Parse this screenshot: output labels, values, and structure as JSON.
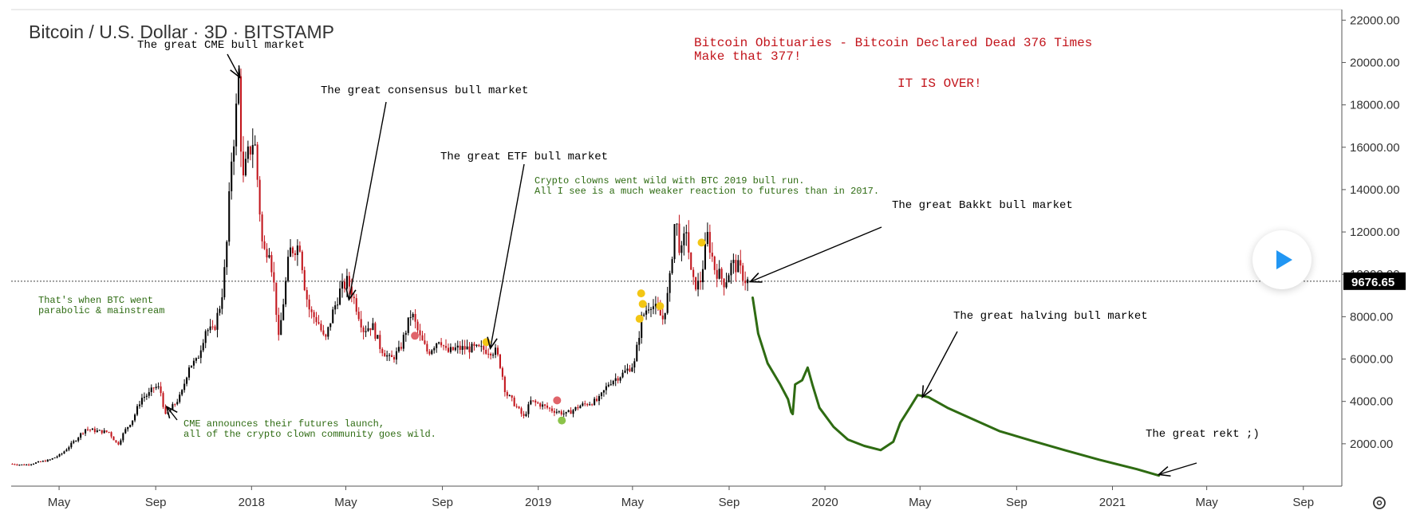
{
  "header": {
    "title": "Bitcoin / U.S. Dollar · 3D · BITSTAMP"
  },
  "colors": {
    "up": "#000000",
    "down": "#c2151c",
    "projection": "#2e6b12",
    "annotation_red": "#c2151c",
    "annotation_green": "#2e6b12",
    "annotation_black": "#000000",
    "price_tag_bg": "#000000",
    "marker_yellow": "#f3c614",
    "marker_red": "#e0646a",
    "marker_green": "#8bc34a"
  },
  "controls": {
    "play_icon": "play-icon",
    "settings_icon": "gear-icon"
  },
  "chart_data": {
    "type": "line",
    "title": "Bitcoin / U.S. Dollar · 3D · BITSTAMP",
    "xlabel": "",
    "ylabel": "",
    "x_range": [
      "2017-03-01",
      "2021-10-20"
    ],
    "ylim": [
      0,
      22500
    ],
    "grid": false,
    "y_ticks": [
      "22000.00",
      "20000.00",
      "18000.00",
      "16000.00",
      "14000.00",
      "12000.00",
      "10000.00",
      "8000.00",
      "6000.00",
      "4000.00",
      "2000.00"
    ],
    "y_tick_values": [
      22000,
      20000,
      18000,
      16000,
      14000,
      12000,
      10000,
      8000,
      6000,
      4000,
      2000
    ],
    "x_ticks": [
      {
        "label": "May",
        "date": "2017-05-01"
      },
      {
        "label": "Sep",
        "date": "2017-09-01"
      },
      {
        "label": "2018",
        "date": "2018-01-01"
      },
      {
        "label": "May",
        "date": "2018-05-01"
      },
      {
        "label": "Sep",
        "date": "2018-09-01"
      },
      {
        "label": "2019",
        "date": "2019-01-01"
      },
      {
        "label": "May",
        "date": "2019-05-01"
      },
      {
        "label": "Sep",
        "date": "2019-09-01"
      },
      {
        "label": "2020",
        "date": "2020-01-01"
      },
      {
        "label": "May",
        "date": "2020-05-01"
      },
      {
        "label": "Sep",
        "date": "2020-09-01"
      },
      {
        "label": "2021",
        "date": "2021-01-01"
      },
      {
        "label": "May",
        "date": "2021-05-01"
      },
      {
        "label": "Sep",
        "date": "2021-09-01"
      }
    ],
    "last_price": {
      "label": "9676.65",
      "value": 9676.65
    },
    "series": [
      {
        "kind": "price",
        "points": [
          [
            "2017-03-01",
            1050
          ],
          [
            "2017-03-20",
            1000
          ],
          [
            "2017-04-05",
            1120
          ],
          [
            "2017-04-20",
            1230
          ],
          [
            "2017-05-05",
            1500
          ],
          [
            "2017-05-20",
            2050
          ],
          [
            "2017-06-05",
            2700
          ],
          [
            "2017-06-20",
            2600
          ],
          [
            "2017-07-05",
            2550
          ],
          [
            "2017-07-16",
            1950
          ],
          [
            "2017-07-25",
            2600
          ],
          [
            "2017-08-05",
            3200
          ],
          [
            "2017-08-15",
            4150
          ],
          [
            "2017-08-25",
            4350
          ],
          [
            "2017-09-01",
            4700
          ],
          [
            "2017-09-08",
            4600
          ],
          [
            "2017-09-15",
            3300
          ],
          [
            "2017-09-25",
            3800
          ],
          [
            "2017-10-05",
            4300
          ],
          [
            "2017-10-15",
            5700
          ],
          [
            "2017-10-25",
            5900
          ],
          [
            "2017-11-05",
            7400
          ],
          [
            "2017-11-15",
            7300
          ],
          [
            "2017-11-25",
            8800
          ],
          [
            "2017-12-01",
            10800
          ],
          [
            "2017-12-08",
            15500
          ],
          [
            "2017-12-12",
            16800
          ],
          [
            "2017-12-17",
            19200
          ],
          [
            "2017-12-22",
            14200
          ],
          [
            "2017-12-28",
            15500
          ],
          [
            "2018-01-06",
            16500
          ],
          [
            "2018-01-12",
            13500
          ],
          [
            "2018-01-17",
            11000
          ],
          [
            "2018-01-25",
            11300
          ],
          [
            "2018-02-01",
            9200
          ],
          [
            "2018-02-06",
            6900
          ],
          [
            "2018-02-12",
            8700
          ],
          [
            "2018-02-20",
            11100
          ],
          [
            "2018-03-05",
            11400
          ],
          [
            "2018-03-12",
            9200
          ],
          [
            "2018-03-18",
            8200
          ],
          [
            "2018-03-28",
            7800
          ],
          [
            "2018-04-06",
            6800
          ],
          [
            "2018-04-15",
            8100
          ],
          [
            "2018-04-25",
            9200
          ],
          [
            "2018-05-05",
            9700
          ],
          [
            "2018-05-15",
            8600
          ],
          [
            "2018-05-25",
            7400
          ],
          [
            "2018-06-05",
            7600
          ],
          [
            "2018-06-15",
            6600
          ],
          [
            "2018-06-28",
            5950
          ],
          [
            "2018-07-10",
            6400
          ],
          [
            "2018-07-25",
            8200
          ],
          [
            "2018-08-05",
            7000
          ],
          [
            "2018-08-15",
            6300
          ],
          [
            "2018-08-30",
            7000
          ],
          [
            "2018-09-08",
            6300
          ],
          [
            "2018-09-20",
            6500
          ],
          [
            "2018-10-10",
            6500
          ],
          [
            "2018-10-25",
            6450
          ],
          [
            "2018-11-10",
            6350
          ],
          [
            "2018-11-16",
            5600
          ],
          [
            "2018-11-22",
            4400
          ],
          [
            "2018-12-01",
            4000
          ],
          [
            "2018-12-15",
            3250
          ],
          [
            "2018-12-24",
            4000
          ],
          [
            "2019-01-05",
            3850
          ],
          [
            "2019-01-20",
            3600
          ],
          [
            "2019-02-07",
            3400
          ],
          [
            "2019-02-25",
            3800
          ],
          [
            "2019-03-20",
            4050
          ],
          [
            "2019-04-03",
            4900
          ],
          [
            "2019-04-20",
            5300
          ],
          [
            "2019-05-05",
            5800
          ],
          [
            "2019-05-14",
            7900
          ],
          [
            "2019-05-25",
            8700
          ],
          [
            "2019-06-10",
            7900
          ],
          [
            "2019-06-18",
            9300
          ],
          [
            "2019-06-26",
            12800
          ],
          [
            "2019-07-03",
            10800
          ],
          [
            "2019-07-10",
            12200
          ],
          [
            "2019-07-17",
            9600
          ],
          [
            "2019-07-27",
            9500
          ],
          [
            "2019-08-06",
            11800
          ],
          [
            "2019-08-15",
            10300
          ],
          [
            "2019-08-28",
            9600
          ],
          [
            "2019-09-06",
            10500
          ],
          [
            "2019-09-15",
            10300
          ],
          [
            "2019-09-24",
            9676.65
          ]
        ]
      },
      {
        "kind": "projection",
        "points": [
          [
            "2019-10-01",
            8900
          ],
          [
            "2019-10-08",
            7200
          ],
          [
            "2019-10-20",
            5800
          ],
          [
            "2019-11-05",
            4800
          ],
          [
            "2019-11-15",
            4100
          ],
          [
            "2019-11-19",
            3500
          ],
          [
            "2019-11-21",
            3400
          ],
          [
            "2019-11-24",
            4800
          ],
          [
            "2019-12-03",
            5000
          ],
          [
            "2019-12-10",
            5600
          ],
          [
            "2019-12-16",
            4800
          ],
          [
            "2019-12-25",
            3700
          ],
          [
            "2020-01-12",
            2800
          ],
          [
            "2020-01-30",
            2200
          ],
          [
            "2020-02-20",
            1900
          ],
          [
            "2020-03-12",
            1700
          ],
          [
            "2020-03-28",
            2100
          ],
          [
            "2020-04-06",
            3000
          ],
          [
            "2020-04-18",
            3700
          ],
          [
            "2020-04-28",
            4300
          ],
          [
            "2020-05-12",
            4200
          ],
          [
            "2020-06-05",
            3700
          ],
          [
            "2020-07-05",
            3200
          ],
          [
            "2020-08-10",
            2600
          ],
          [
            "2020-09-20",
            2150
          ],
          [
            "2020-11-01",
            1700
          ],
          [
            "2020-12-15",
            1250
          ],
          [
            "2021-02-01",
            800
          ],
          [
            "2021-03-01",
            500
          ]
        ]
      }
    ],
    "markers": [
      {
        "date": "2018-07-28",
        "value": 7100,
        "color": "red"
      },
      {
        "date": "2018-10-27",
        "value": 6800,
        "color": "yellow"
      },
      {
        "date": "2019-01-25",
        "value": 4050,
        "color": "red"
      },
      {
        "date": "2019-01-31",
        "value": 3100,
        "color": "green"
      },
      {
        "date": "2019-05-10",
        "value": 7900,
        "color": "yellow"
      },
      {
        "date": "2019-05-12",
        "value": 9100,
        "color": "yellow"
      },
      {
        "date": "2019-05-14",
        "value": 8600,
        "color": "yellow"
      },
      {
        "date": "2019-06-05",
        "value": 8500,
        "color": "yellow"
      },
      {
        "date": "2019-07-28",
        "value": 11500,
        "color": "yellow"
      }
    ],
    "annotations": [
      {
        "id": "cme-bull",
        "text": [
          "The great CME bull market"
        ],
        "color": "black",
        "tip": [
          "2017-12-17",
          19300
        ]
      },
      {
        "id": "consensus-bull",
        "text": [
          "The great consensus bull market"
        ],
        "color": "black",
        "tip": [
          "2018-05-05",
          8800
        ]
      },
      {
        "id": "etf-bull",
        "text": [
          "The great ETF bull market"
        ],
        "color": "black",
        "tip": [
          "2018-11-01",
          6500
        ]
      },
      {
        "id": "bakkt-bull",
        "text": [
          "The great Bakkt bull market"
        ],
        "color": "black",
        "tip": [
          "2019-09-28",
          9650
        ]
      },
      {
        "id": "halving-bull",
        "text": [
          "The great halving bull market"
        ],
        "color": "black",
        "tip": [
          "2020-05-04",
          4200
        ]
      },
      {
        "id": "rekt",
        "text": [
          "The great rekt ;)"
        ],
        "color": "black",
        "tip": [
          "2021-03-01",
          550
        ]
      },
      {
        "id": "obituaries",
        "text": [
          "Bitcoin Obituaries - Bitcoin Declared Dead 376 Times",
          "Make that 377!"
        ],
        "color": "red"
      },
      {
        "id": "over",
        "text": [
          "IT IS OVER!"
        ],
        "color": "red"
      },
      {
        "id": "crypto-clowns",
        "text": [
          "Crypto clowns went wild with BTC 2019 bull run.",
          "All I see is a much weaker reaction to futures than in 2017."
        ],
        "color": "green"
      },
      {
        "id": "parabolic",
        "text": [
          "That's when BTC went",
          "parabolic & mainstream"
        ],
        "color": "green"
      },
      {
        "id": "cme-launch",
        "text": [
          "CME announces their futures launch,",
          "all of the crypto clown community goes wild."
        ],
        "color": "green",
        "tip": [
          "2017-09-15",
          3750
        ]
      }
    ]
  }
}
